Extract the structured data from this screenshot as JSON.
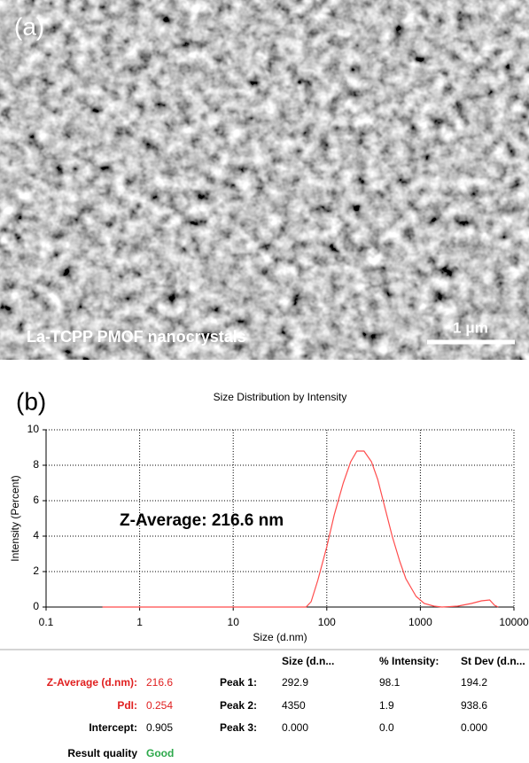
{
  "panel_a": {
    "label": "(a)",
    "caption": "La-TCPP PMOF nanocrystals",
    "scale_bar": "1 μm"
  },
  "chart_data": {
    "type": "line",
    "panel_label": "(b)",
    "title": "Size Distribution by Intensity",
    "x_label": "Size (d.nm)",
    "y_label": "Intensity (Percent)",
    "annotation": "Z-Average: 216.6 nm",
    "x": [
      0.4,
      60,
      68,
      80,
      100,
      120,
      150,
      180,
      210,
      250,
      300,
      350,
      400,
      500,
      600,
      700,
      900,
      1100,
      1400,
      1700,
      2500,
      3500,
      4500,
      5500,
      6200,
      6800
    ],
    "values": [
      0,
      0,
      0.3,
      1.5,
      3.4,
      5.2,
      7.0,
      8.2,
      8.8,
      8.8,
      8.2,
      7.2,
      6.0,
      4.0,
      2.6,
      1.6,
      0.6,
      0.2,
      0.05,
      0,
      0.05,
      0.2,
      0.35,
      0.4,
      0.1,
      0
    ],
    "color": "#ff4b4b",
    "xscale": "log",
    "xlim": [
      0.1,
      10000
    ],
    "xticks": [
      0.1,
      1,
      10,
      100,
      1000,
      10000
    ],
    "ylim": [
      0,
      10
    ],
    "yticks": [
      0,
      2,
      4,
      6,
      8,
      10
    ],
    "grid": true
  },
  "table": {
    "columns": [
      "Size (d.n...",
      "% Intensity:",
      "St Dev (d.n..."
    ],
    "peaks": [
      [
        "Peak 1:",
        "292.9",
        "98.1",
        "194.2"
      ],
      [
        "Peak 2:",
        "4350",
        "1.9",
        "938.6"
      ],
      [
        "Peak 3:",
        "0.000",
        "0.0",
        "0.000"
      ]
    ],
    "summary": [
      [
        "Z-Average (d.nm):",
        "216.6"
      ],
      [
        "PdI:",
        "0.254"
      ],
      [
        "Intercept:",
        "0.905"
      ],
      [
        "Result quality",
        "Good"
      ]
    ]
  }
}
